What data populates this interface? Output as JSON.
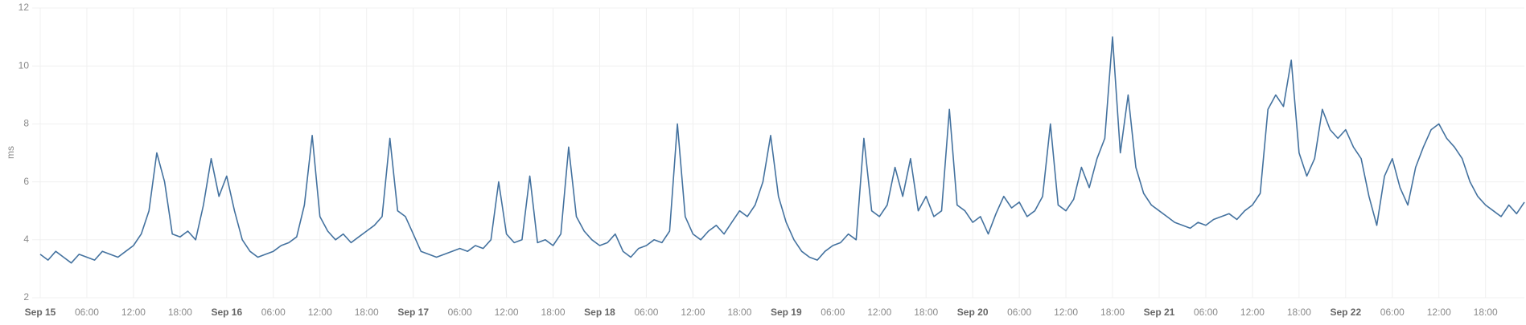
{
  "chart_data": {
    "type": "line",
    "y_label": "ms",
    "x": [
      "Sep 15 00:00",
      "Sep 15 01:00",
      "Sep 15 02:00",
      "Sep 15 03:00",
      "Sep 15 04:00",
      "Sep 15 05:00",
      "Sep 15 06:00",
      "Sep 15 07:00",
      "Sep 15 08:00",
      "Sep 15 09:00",
      "Sep 15 10:00",
      "Sep 15 11:00",
      "Sep 15 12:00",
      "Sep 15 13:00",
      "Sep 15 14:00",
      "Sep 15 15:00",
      "Sep 15 16:00",
      "Sep 15 17:00",
      "Sep 15 18:00",
      "Sep 15 19:00",
      "Sep 15 20:00",
      "Sep 15 21:00",
      "Sep 15 22:00",
      "Sep 15 23:00",
      "Sep 16 00:00",
      "Sep 16 01:00",
      "Sep 16 02:00",
      "Sep 16 03:00",
      "Sep 16 04:00",
      "Sep 16 05:00",
      "Sep 16 06:00",
      "Sep 16 07:00",
      "Sep 16 08:00",
      "Sep 16 09:00",
      "Sep 16 10:00",
      "Sep 16 11:00",
      "Sep 16 12:00",
      "Sep 16 13:00",
      "Sep 16 14:00",
      "Sep 16 15:00",
      "Sep 16 16:00",
      "Sep 16 17:00",
      "Sep 16 18:00",
      "Sep 16 19:00",
      "Sep 16 20:00",
      "Sep 16 21:00",
      "Sep 16 22:00",
      "Sep 16 23:00",
      "Sep 17 00:00",
      "Sep 17 01:00",
      "Sep 17 02:00",
      "Sep 17 03:00",
      "Sep 17 04:00",
      "Sep 17 05:00",
      "Sep 17 06:00",
      "Sep 17 07:00",
      "Sep 17 08:00",
      "Sep 17 09:00",
      "Sep 17 10:00",
      "Sep 17 11:00",
      "Sep 17 12:00",
      "Sep 17 13:00",
      "Sep 17 14:00",
      "Sep 17 15:00",
      "Sep 17 16:00",
      "Sep 17 17:00",
      "Sep 17 18:00",
      "Sep 17 19:00",
      "Sep 17 20:00",
      "Sep 17 21:00",
      "Sep 17 22:00",
      "Sep 17 23:00",
      "Sep 18 00:00",
      "Sep 18 01:00",
      "Sep 18 02:00",
      "Sep 18 03:00",
      "Sep 18 04:00",
      "Sep 18 05:00",
      "Sep 18 06:00",
      "Sep 18 07:00",
      "Sep 18 08:00",
      "Sep 18 09:00",
      "Sep 18 10:00",
      "Sep 18 11:00",
      "Sep 18 12:00",
      "Sep 18 13:00",
      "Sep 18 14:00",
      "Sep 18 15:00",
      "Sep 18 16:00",
      "Sep 18 17:00",
      "Sep 18 18:00",
      "Sep 18 19:00",
      "Sep 18 20:00",
      "Sep 18 21:00",
      "Sep 18 22:00",
      "Sep 18 23:00",
      "Sep 19 00:00",
      "Sep 19 01:00",
      "Sep 19 02:00",
      "Sep 19 03:00",
      "Sep 19 04:00",
      "Sep 19 05:00",
      "Sep 19 06:00",
      "Sep 19 07:00",
      "Sep 19 08:00",
      "Sep 19 09:00",
      "Sep 19 10:00",
      "Sep 19 11:00",
      "Sep 19 12:00",
      "Sep 19 13:00",
      "Sep 19 14:00",
      "Sep 19 15:00",
      "Sep 19 16:00",
      "Sep 19 17:00",
      "Sep 19 18:00",
      "Sep 19 19:00",
      "Sep 19 20:00",
      "Sep 19 21:00",
      "Sep 19 22:00",
      "Sep 19 23:00",
      "Sep 20 00:00",
      "Sep 20 01:00",
      "Sep 20 02:00",
      "Sep 20 03:00",
      "Sep 20 04:00",
      "Sep 20 05:00",
      "Sep 20 06:00",
      "Sep 20 07:00",
      "Sep 20 08:00",
      "Sep 20 09:00",
      "Sep 20 10:00",
      "Sep 20 11:00",
      "Sep 20 12:00",
      "Sep 20 13:00",
      "Sep 20 14:00",
      "Sep 20 15:00",
      "Sep 20 16:00",
      "Sep 20 17:00",
      "Sep 20 18:00",
      "Sep 20 19:00",
      "Sep 20 20:00",
      "Sep 20 21:00",
      "Sep 20 22:00",
      "Sep 20 23:00",
      "Sep 21 00:00",
      "Sep 21 01:00",
      "Sep 21 02:00",
      "Sep 21 03:00",
      "Sep 21 04:00",
      "Sep 21 05:00",
      "Sep 21 06:00",
      "Sep 21 07:00",
      "Sep 21 08:00",
      "Sep 21 09:00",
      "Sep 21 10:00",
      "Sep 21 11:00",
      "Sep 21 12:00",
      "Sep 21 13:00",
      "Sep 21 14:00",
      "Sep 21 15:00",
      "Sep 21 16:00",
      "Sep 21 17:00",
      "Sep 21 18:00",
      "Sep 21 19:00",
      "Sep 21 20:00",
      "Sep 21 21:00",
      "Sep 21 22:00",
      "Sep 21 23:00",
      "Sep 22 00:00",
      "Sep 22 01:00",
      "Sep 22 02:00",
      "Sep 22 03:00",
      "Sep 22 04:00",
      "Sep 22 05:00",
      "Sep 22 06:00",
      "Sep 22 07:00",
      "Sep 22 08:00",
      "Sep 22 09:00",
      "Sep 22 10:00",
      "Sep 22 11:00",
      "Sep 22 12:00",
      "Sep 22 13:00",
      "Sep 22 14:00",
      "Sep 22 15:00",
      "Sep 22 16:00",
      "Sep 22 17:00",
      "Sep 22 18:00",
      "Sep 22 19:00",
      "Sep 22 20:00",
      "Sep 22 21:00",
      "Sep 22 22:00",
      "Sep 22 23:00"
    ],
    "series": [
      {
        "color": "#44729f",
        "values": [
          3.5,
          3.3,
          3.6,
          3.4,
          3.2,
          3.5,
          3.4,
          3.3,
          3.6,
          3.5,
          3.4,
          3.6,
          3.8,
          4.2,
          5.0,
          7.0,
          6.0,
          4.2,
          4.1,
          4.3,
          4.0,
          5.2,
          6.8,
          5.5,
          6.2,
          5.0,
          4.0,
          3.6,
          3.4,
          3.5,
          3.6,
          3.8,
          3.9,
          4.1,
          5.2,
          7.6,
          4.8,
          4.3,
          4.0,
          4.2,
          3.9,
          4.1,
          4.3,
          4.5,
          4.8,
          7.5,
          5.0,
          4.8,
          4.2,
          3.6,
          3.5,
          3.4,
          3.5,
          3.6,
          3.7,
          3.6,
          3.8,
          3.7,
          4.0,
          6.0,
          4.2,
          3.9,
          4.0,
          6.2,
          3.9,
          4.0,
          3.8,
          4.2,
          7.2,
          4.8,
          4.3,
          4.0,
          3.8,
          3.9,
          4.2,
          3.6,
          3.4,
          3.7,
          3.8,
          4.0,
          3.9,
          4.3,
          8.0,
          4.8,
          4.2,
          4.0,
          4.3,
          4.5,
          4.2,
          4.6,
          5.0,
          4.8,
          5.2,
          6.0,
          7.6,
          5.5,
          4.6,
          4.0,
          3.6,
          3.4,
          3.3,
          3.6,
          3.8,
          3.9,
          4.2,
          4.0,
          7.5,
          5.0,
          4.8,
          5.2,
          6.5,
          5.5,
          6.8,
          5.0,
          5.5,
          4.8,
          5.0,
          8.5,
          5.2,
          5.0,
          4.6,
          4.8,
          4.2,
          4.9,
          5.5,
          5.1,
          5.3,
          4.8,
          5.0,
          5.5,
          8.0,
          5.2,
          5.0,
          5.4,
          6.5,
          5.8,
          6.8,
          7.5,
          11.0,
          7.0,
          9.0,
          6.5,
          5.6,
          5.2,
          5.0,
          4.8,
          4.6,
          4.5,
          4.4,
          4.6,
          4.5,
          4.7,
          4.8,
          4.9,
          4.7,
          5.0,
          5.2,
          5.6,
          8.5,
          9.0,
          8.6,
          10.2,
          7.0,
          6.2,
          6.8,
          8.5,
          7.8,
          7.5,
          7.8,
          7.2,
          6.8,
          5.5,
          4.5,
          6.2,
          6.8,
          5.8,
          5.2,
          6.5,
          7.2,
          7.8,
          8.0,
          7.5,
          7.2,
          6.8,
          6.0,
          5.5,
          5.2,
          5.0,
          4.8,
          5.2,
          4.9,
          5.3
        ]
      }
    ],
    "xlim": [
      "Sep 15 00:00",
      "Sep 22 23:00"
    ],
    "xticks": [
      {
        "value": "Sep 15 00:00",
        "label": "Sep 15"
      },
      {
        "value": "Sep 15 06:00",
        "label": "06:00"
      },
      {
        "value": "Sep 15 12:00",
        "label": "12:00"
      },
      {
        "value": "Sep 15 18:00",
        "label": "18:00"
      },
      {
        "value": "Sep 16 00:00",
        "label": "Sep 16"
      },
      {
        "value": "Sep 16 06:00",
        "label": "06:00"
      },
      {
        "value": "Sep 16 12:00",
        "label": "12:00"
      },
      {
        "value": "Sep 16 18:00",
        "label": "18:00"
      },
      {
        "value": "Sep 17 00:00",
        "label": "Sep 17"
      },
      {
        "value": "Sep 17 06:00",
        "label": "06:00"
      },
      {
        "value": "Sep 17 12:00",
        "label": "12:00"
      },
      {
        "value": "Sep 17 18:00",
        "label": "18:00"
      },
      {
        "value": "Sep 18 00:00",
        "label": "Sep 18"
      },
      {
        "value": "Sep 18 06:00",
        "label": "06:00"
      },
      {
        "value": "Sep 18 12:00",
        "label": "12:00"
      },
      {
        "value": "Sep 18 18:00",
        "label": "18:00"
      },
      {
        "value": "Sep 19 00:00",
        "label": "Sep 19"
      },
      {
        "value": "Sep 19 06:00",
        "label": "06:00"
      },
      {
        "value": "Sep 19 12:00",
        "label": "12:00"
      },
      {
        "value": "Sep 19 18:00",
        "label": "18:00"
      },
      {
        "value": "Sep 20 00:00",
        "label": "Sep 20"
      },
      {
        "value": "Sep 20 06:00",
        "label": "06:00"
      },
      {
        "value": "Sep 20 12:00",
        "label": "12:00"
      },
      {
        "value": "Sep 20 18:00",
        "label": "18:00"
      },
      {
        "value": "Sep 21 00:00",
        "label": "Sep 21"
      },
      {
        "value": "Sep 21 06:00",
        "label": "06:00"
      },
      {
        "value": "Sep 21 12:00",
        "label": "12:00"
      },
      {
        "value": "Sep 21 18:00",
        "label": "18:00"
      },
      {
        "value": "Sep 22 00:00",
        "label": "Sep 22"
      },
      {
        "value": "Sep 22 06:00",
        "label": "06:00"
      },
      {
        "value": "Sep 22 12:00",
        "label": "12:00"
      },
      {
        "value": "Sep 22 18:00",
        "label": "18:00"
      }
    ],
    "ylim": [
      2,
      12
    ],
    "yticks": [
      2,
      4,
      6,
      8,
      10,
      12
    ],
    "grid": true
  }
}
